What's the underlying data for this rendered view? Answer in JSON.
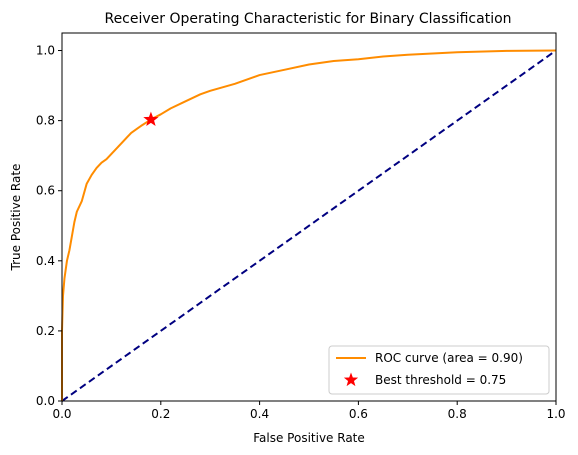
{
  "chart_data": {
    "type": "line",
    "title": "Receiver Operating Characteristic for Binary Classification",
    "xlabel": "False Positive Rate",
    "ylabel": "True Positive Rate",
    "xlim": [
      0.0,
      1.0
    ],
    "ylim": [
      0.0,
      1.05
    ],
    "grid": false,
    "legend_placement": "lower-right",
    "x_ticks": [
      "0.0",
      "0.2",
      "0.4",
      "0.6",
      "0.8",
      "1.0"
    ],
    "y_ticks": [
      "0.0",
      "0.2",
      "0.4",
      "0.6",
      "0.8",
      "1.0"
    ],
    "series": [
      {
        "name": "ROC curve (area = 0.90)",
        "color": "#ff8c00",
        "style": "solid",
        "x": [
          0.0,
          0.0,
          0.002,
          0.005,
          0.01,
          0.015,
          0.02,
          0.025,
          0.03,
          0.04,
          0.05,
          0.06,
          0.07,
          0.08,
          0.09,
          0.1,
          0.12,
          0.14,
          0.16,
          0.18,
          0.2,
          0.22,
          0.25,
          0.28,
          0.3,
          0.35,
          0.4,
          0.45,
          0.5,
          0.55,
          0.6,
          0.65,
          0.7,
          0.8,
          0.9,
          1.0
        ],
        "y": [
          0.0,
          0.2,
          0.3,
          0.35,
          0.4,
          0.43,
          0.47,
          0.51,
          0.54,
          0.57,
          0.62,
          0.645,
          0.665,
          0.68,
          0.69,
          0.705,
          0.735,
          0.765,
          0.785,
          0.803,
          0.818,
          0.835,
          0.855,
          0.875,
          0.885,
          0.905,
          0.93,
          0.945,
          0.96,
          0.97,
          0.975,
          0.983,
          0.988,
          0.995,
          0.999,
          1.0
        ]
      },
      {
        "name": "",
        "color": "#000080",
        "style": "dashed",
        "x": [
          0.0,
          1.0
        ],
        "y": [
          0.0,
          1.0
        ]
      }
    ],
    "markers": [
      {
        "name": "Best threshold = 0.75",
        "x": 0.18,
        "y": 0.803,
        "color": "#ff0000",
        "symbol": "star"
      }
    ]
  }
}
